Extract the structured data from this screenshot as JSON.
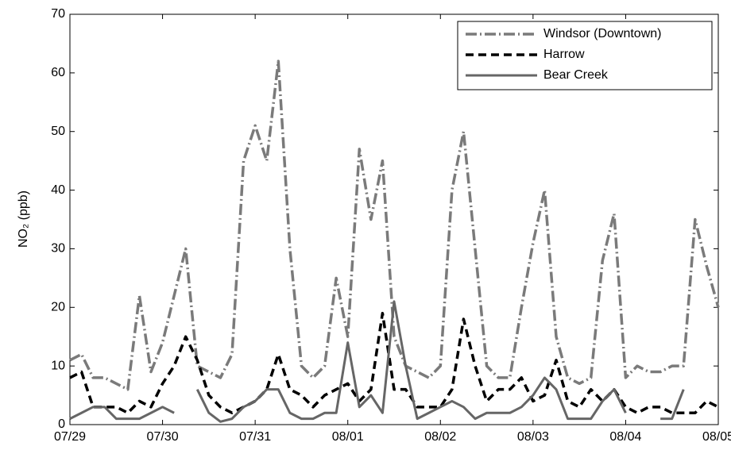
{
  "chart_data": {
    "type": "line",
    "y_label": "NO₂ (ppb)",
    "x": [
      0,
      0.125,
      0.25,
      0.375,
      0.5,
      0.625,
      0.75,
      0.875,
      1,
      1.125,
      1.25,
      1.375,
      1.5,
      1.625,
      1.75,
      1.875,
      2,
      2.125,
      2.25,
      2.375,
      2.5,
      2.625,
      2.75,
      2.875,
      3,
      3.125,
      3.25,
      3.375,
      3.5,
      3.625,
      3.75,
      3.875,
      4,
      4.125,
      4.25,
      4.375,
      4.5,
      4.625,
      4.75,
      4.875,
      5,
      5.125,
      5.25,
      5.375,
      5.5,
      5.625,
      5.75,
      5.875,
      6,
      6.125,
      6.25,
      6.375,
      6.5,
      6.625,
      6.75,
      6.875,
      7
    ],
    "series": [
      {
        "name": "Windsor (Downtown)",
        "color": "#7a7a7a",
        "style": "dashdot",
        "values": [
          11,
          12,
          8,
          8,
          7,
          6,
          22,
          9,
          14,
          22,
          30,
          10,
          9,
          8,
          12,
          45,
          51,
          45,
          62,
          30,
          10,
          8,
          10,
          25,
          15,
          47,
          35,
          45,
          15,
          10,
          9,
          8,
          10,
          40,
          50,
          30,
          10,
          8,
          8,
          20,
          31,
          40,
          15,
          8,
          7,
          8,
          28,
          36,
          8,
          10,
          9,
          9,
          10,
          10,
          35,
          27,
          20
        ]
      },
      {
        "name": "Harrow",
        "color": "#000000",
        "style": "dashed",
        "values": [
          8,
          9,
          3,
          3,
          3,
          2,
          4,
          3,
          7,
          10,
          15,
          11,
          5,
          3,
          2,
          3,
          4,
          6,
          12,
          6,
          5,
          3,
          5,
          6,
          7,
          4,
          6,
          19,
          6,
          6,
          3,
          3,
          3,
          6,
          18,
          10,
          4,
          6,
          6,
          8,
          4,
          5,
          11,
          4,
          3,
          6,
          4,
          6,
          3,
          2,
          3,
          3,
          2,
          2,
          2,
          4,
          3
        ]
      },
      {
        "name": "Bear Creek",
        "color": "#666666",
        "style": "solid",
        "values": [
          1,
          2,
          3,
          3,
          1,
          1,
          1,
          2,
          3,
          2,
          null,
          6,
          2,
          0.5,
          1,
          3,
          4,
          6,
          6,
          2,
          1,
          1,
          2,
          2,
          14,
          3,
          5,
          2,
          21,
          10,
          1,
          2,
          3,
          4,
          3,
          1,
          2,
          2,
          2,
          3,
          5,
          8,
          6,
          1,
          1,
          1,
          4,
          6,
          2,
          null,
          null,
          1,
          1,
          6,
          null,
          null,
          null
        ]
      }
    ],
    "xlim": [
      0,
      7
    ],
    "xticks": [
      {
        "value": 0,
        "label": "07/29"
      },
      {
        "value": 1,
        "label": "07/30"
      },
      {
        "value": 2,
        "label": "07/31"
      },
      {
        "value": 3,
        "label": "08/01"
      },
      {
        "value": 4,
        "label": "08/02"
      },
      {
        "value": 5,
        "label": "08/03"
      },
      {
        "value": 6,
        "label": "08/04"
      },
      {
        "value": 7,
        "label": "08/05"
      }
    ],
    "ylim": [
      0,
      70
    ],
    "yticks": [
      0,
      10,
      20,
      30,
      40,
      50,
      60,
      70
    ],
    "legend": "upper right"
  }
}
